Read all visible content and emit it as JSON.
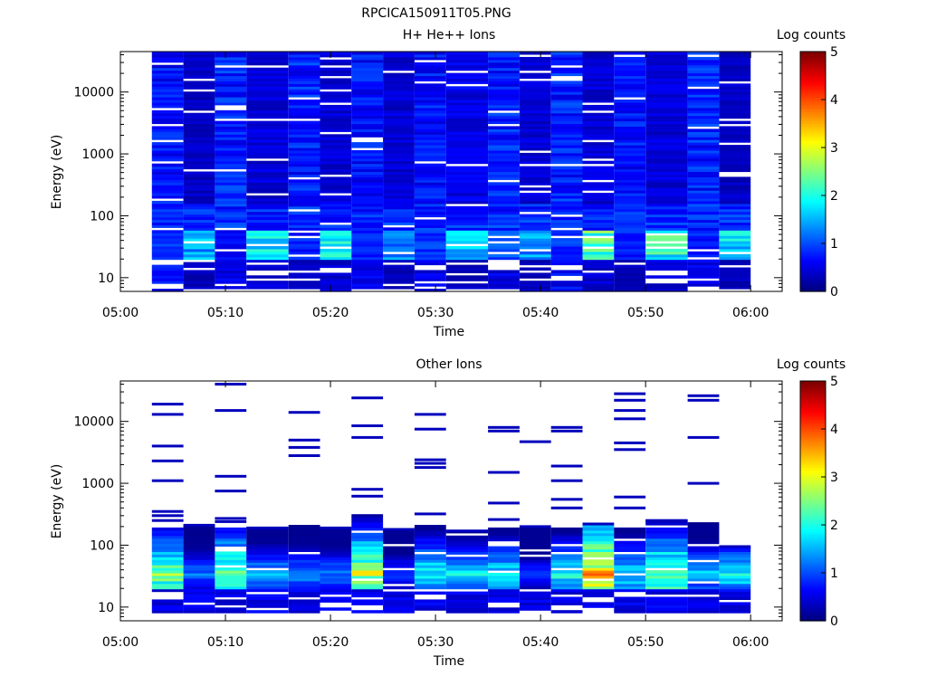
{
  "figure_title": "RPCICA150911T05.PNG",
  "chart_data": [
    {
      "type": "heatmap",
      "title": "H+ He++ Ions",
      "xlabel": "Time",
      "ylabel": "Energy (eV)",
      "colorbar_label": "Log counts",
      "colorbar_ticks": [
        "0",
        "1",
        "2",
        "3",
        "4",
        "5"
      ],
      "x_ticks": [
        "05:00",
        "05:10",
        "05:20",
        "05:30",
        "05:40",
        "05:50",
        "06:00"
      ],
      "y_ticks": [
        "10",
        "100",
        "1000",
        "10000"
      ],
      "x_range": [
        "05:00",
        "06:03"
      ],
      "y_range_ev": [
        6,
        45000
      ],
      "y_scale": "log",
      "color_range": [
        0,
        5
      ],
      "colormap": "jet",
      "seed": 7,
      "columns": [
        {
          "start": "05:03",
          "end": "05:06",
          "low": 0.6,
          "mid": 0.9,
          "high": 0.8
        },
        {
          "start": "05:06",
          "end": "05:09",
          "low": 0.3,
          "mid": 1.5,
          "high": 0.4
        },
        {
          "start": "05:09",
          "end": "05:12",
          "low": 0.5,
          "mid": 0.7,
          "high": 0.9
        },
        {
          "start": "05:12",
          "end": "05:16",
          "low": 0.4,
          "mid": 1.8,
          "high": 0.5
        },
        {
          "start": "05:16",
          "end": "05:19",
          "low": 0.3,
          "mid": 0.8,
          "high": 0.9
        },
        {
          "start": "05:19",
          "end": "05:22",
          "low": 0.4,
          "mid": 1.9,
          "high": 0.5
        },
        {
          "start": "05:22",
          "end": "05:25",
          "low": 0.5,
          "mid": 0.8,
          "high": 0.8
        },
        {
          "start": "05:25",
          "end": "05:28",
          "low": 0.3,
          "mid": 1.3,
          "high": 0.5
        },
        {
          "start": "05:28",
          "end": "05:31",
          "low": 0.5,
          "mid": 0.9,
          "high": 0.8
        },
        {
          "start": "05:31",
          "end": "05:35",
          "low": 0.3,
          "mid": 1.7,
          "high": 0.6
        },
        {
          "start": "05:35",
          "end": "05:38",
          "low": 0.5,
          "mid": 1.0,
          "high": 0.9
        },
        {
          "start": "05:38",
          "end": "05:41",
          "low": 0.3,
          "mid": 1.4,
          "high": 0.5
        },
        {
          "start": "05:41",
          "end": "05:44",
          "low": 0.6,
          "mid": 0.9,
          "high": 0.9
        },
        {
          "start": "05:44",
          "end": "05:47",
          "low": 0.4,
          "mid": 2.4,
          "high": 0.5
        },
        {
          "start": "05:47",
          "end": "05:50",
          "low": 0.3,
          "mid": 0.8,
          "high": 0.8
        },
        {
          "start": "05:50",
          "end": "05:54",
          "low": 0.4,
          "mid": 2.1,
          "high": 0.5
        },
        {
          "start": "05:54",
          "end": "05:57",
          "low": 0.5,
          "mid": 0.8,
          "high": 0.9
        },
        {
          "start": "05:57",
          "end": "06:00",
          "low": 0.3,
          "mid": 1.8,
          "high": 0.4
        }
      ]
    },
    {
      "type": "heatmap",
      "title": "Other Ions",
      "xlabel": "Time",
      "ylabel": "Energy (eV)",
      "colorbar_label": "Log counts",
      "colorbar_ticks": [
        "0",
        "1",
        "2",
        "3",
        "4",
        "5"
      ],
      "x_ticks": [
        "05:00",
        "05:10",
        "05:20",
        "05:30",
        "05:40",
        "05:50",
        "06:00"
      ],
      "y_ticks": [
        "10",
        "100",
        "1000",
        "10000"
      ],
      "x_range": [
        "05:00",
        "06:03"
      ],
      "y_range_ev": [
        6,
        45000
      ],
      "y_scale": "log",
      "color_range": [
        0,
        5
      ],
      "colormap": "jet",
      "seed": 31,
      "columns": [
        {
          "start": "05:03",
          "end": "05:06",
          "peak": 2.5,
          "top_ev": 200,
          "lines_ev": [
            19000,
            13000,
            4000,
            2300,
            1100,
            350,
            300,
            250
          ]
        },
        {
          "start": "05:06",
          "end": "05:09",
          "peak": 1.2,
          "top_ev": 220,
          "lines_ev": [
            210
          ]
        },
        {
          "start": "05:09",
          "end": "05:12",
          "peak": 2.6,
          "top_ev": 200,
          "lines_ev": [
            40000,
            15000,
            1300,
            750,
            270,
            240
          ]
        },
        {
          "start": "05:12",
          "end": "05:16",
          "peak": 1.5,
          "top_ev": 200,
          "lines_ev": [
            190
          ]
        },
        {
          "start": "05:16",
          "end": "05:19",
          "peak": 1.4,
          "top_ev": 210,
          "lines_ev": [
            14000,
            5000,
            3800,
            2800
          ]
        },
        {
          "start": "05:19",
          "end": "05:22",
          "peak": 1.3,
          "top_ev": 200,
          "lines_ev": [
            190
          ]
        },
        {
          "start": "05:22",
          "end": "05:25",
          "peak": 2.8,
          "top_ev": 320,
          "lines_ev": [
            24000,
            8500,
            5500,
            800,
            620
          ]
        },
        {
          "start": "05:25",
          "end": "05:28",
          "peak": 1.0,
          "top_ev": 180,
          "lines_ev": [
            180
          ]
        },
        {
          "start": "05:28",
          "end": "05:31",
          "peak": 2.1,
          "top_ev": 220,
          "lines_ev": [
            13000,
            7500,
            2400,
            2100,
            1800,
            320
          ]
        },
        {
          "start": "05:31",
          "end": "05:35",
          "peak": 1.8,
          "top_ev": 170,
          "lines_ev": [
            170
          ]
        },
        {
          "start": "05:35",
          "end": "05:38",
          "peak": 1.9,
          "top_ev": 200,
          "lines_ev": [
            8000,
            7000,
            1500,
            480,
            260
          ]
        },
        {
          "start": "05:38",
          "end": "05:41",
          "peak": 0.9,
          "top_ev": 200,
          "lines_ev": [
            4700,
            200
          ]
        },
        {
          "start": "05:41",
          "end": "05:44",
          "peak": 2.0,
          "top_ev": 200,
          "lines_ev": [
            8000,
            7000,
            1900,
            1100,
            550,
            400
          ]
        },
        {
          "start": "05:44",
          "end": "05:47",
          "peak": 3.4,
          "top_ev": 220,
          "lines_ev": [
            220
          ]
        },
        {
          "start": "05:47",
          "end": "05:50",
          "peak": 1.9,
          "top_ev": 200,
          "lines_ev": [
            28000,
            22000,
            15000,
            11000,
            4500,
            3500,
            600,
            400
          ]
        },
        {
          "start": "05:50",
          "end": "05:54",
          "peak": 2.6,
          "top_ev": 250,
          "lines_ev": [
            250
          ]
        },
        {
          "start": "05:54",
          "end": "05:57",
          "peak": 1.6,
          "top_ev": 240,
          "lines_ev": [
            26000,
            22000,
            5500,
            1000
          ]
        },
        {
          "start": "05:57",
          "end": "06:00",
          "peak": 1.9,
          "top_ev": 95,
          "lines_ev": [
            95
          ]
        }
      ]
    }
  ]
}
